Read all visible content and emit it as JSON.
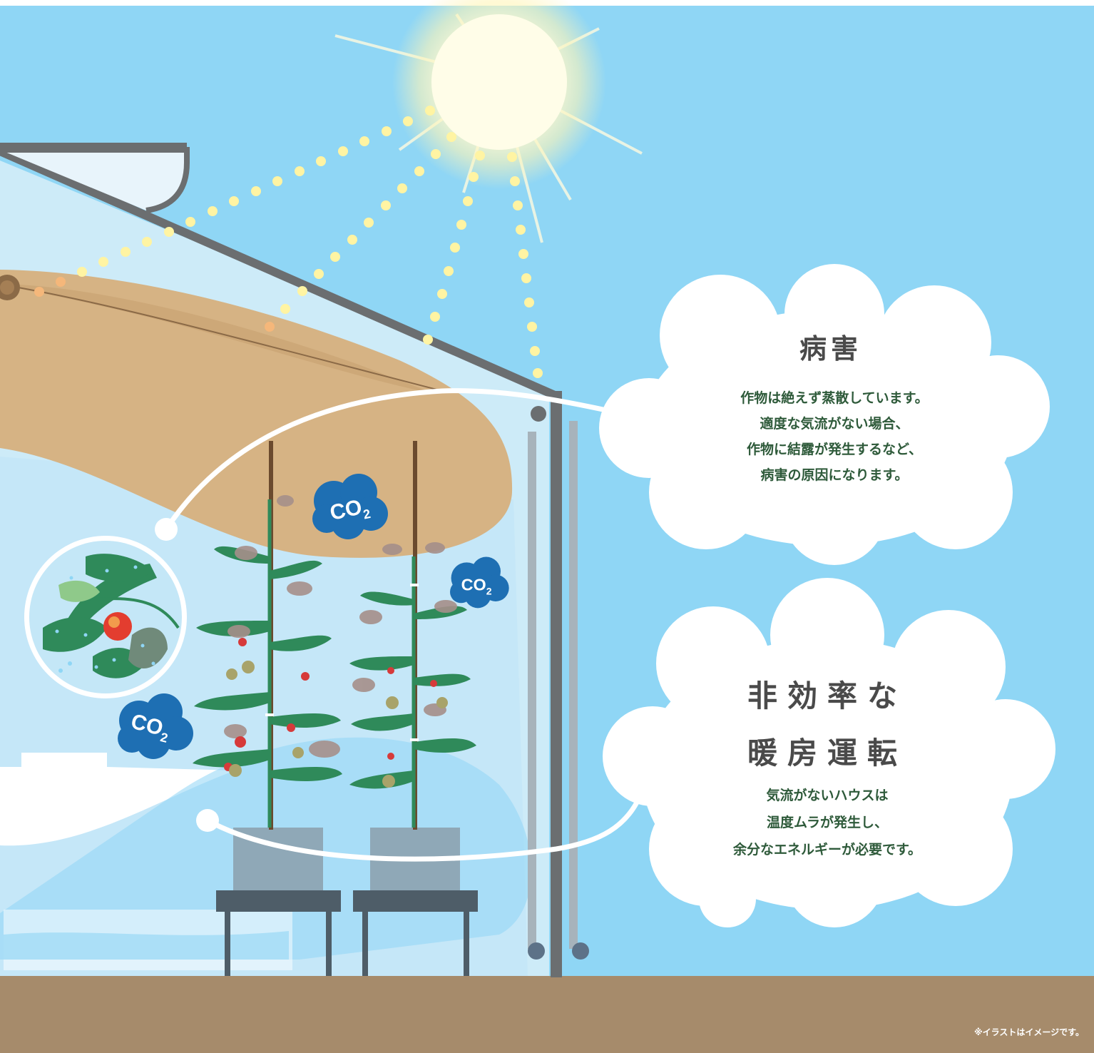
{
  "callout_disease": {
    "title": "病害",
    "lines": [
      "作物は絶えず蒸散しています。",
      "適度な気流がない場合、",
      "作物に結露が発生するなど、",
      "病害の原因になります。"
    ]
  },
  "callout_heating": {
    "title_lines": [
      "非効率な",
      "暖房運転"
    ],
    "lines": [
      "気流がないハウスは",
      "温度ムラが発生し、",
      "余分なエネルギーが必要です。"
    ]
  },
  "co2_labels": [
    "CO2",
    "CO2",
    "CO2"
  ],
  "co2_label_text": "CO",
  "co2_subscript": "2",
  "footnote": "※イラストはイメージです。",
  "colors": {
    "sky": "#8fd6f5",
    "ground": "#a68b6b",
    "humid_zone": "#d6b384",
    "co2_cloud": "#1e6fb3",
    "frame": "#6b6e70",
    "heading_text": "#4a4a4a",
    "body_text": "#2e5a3a"
  }
}
